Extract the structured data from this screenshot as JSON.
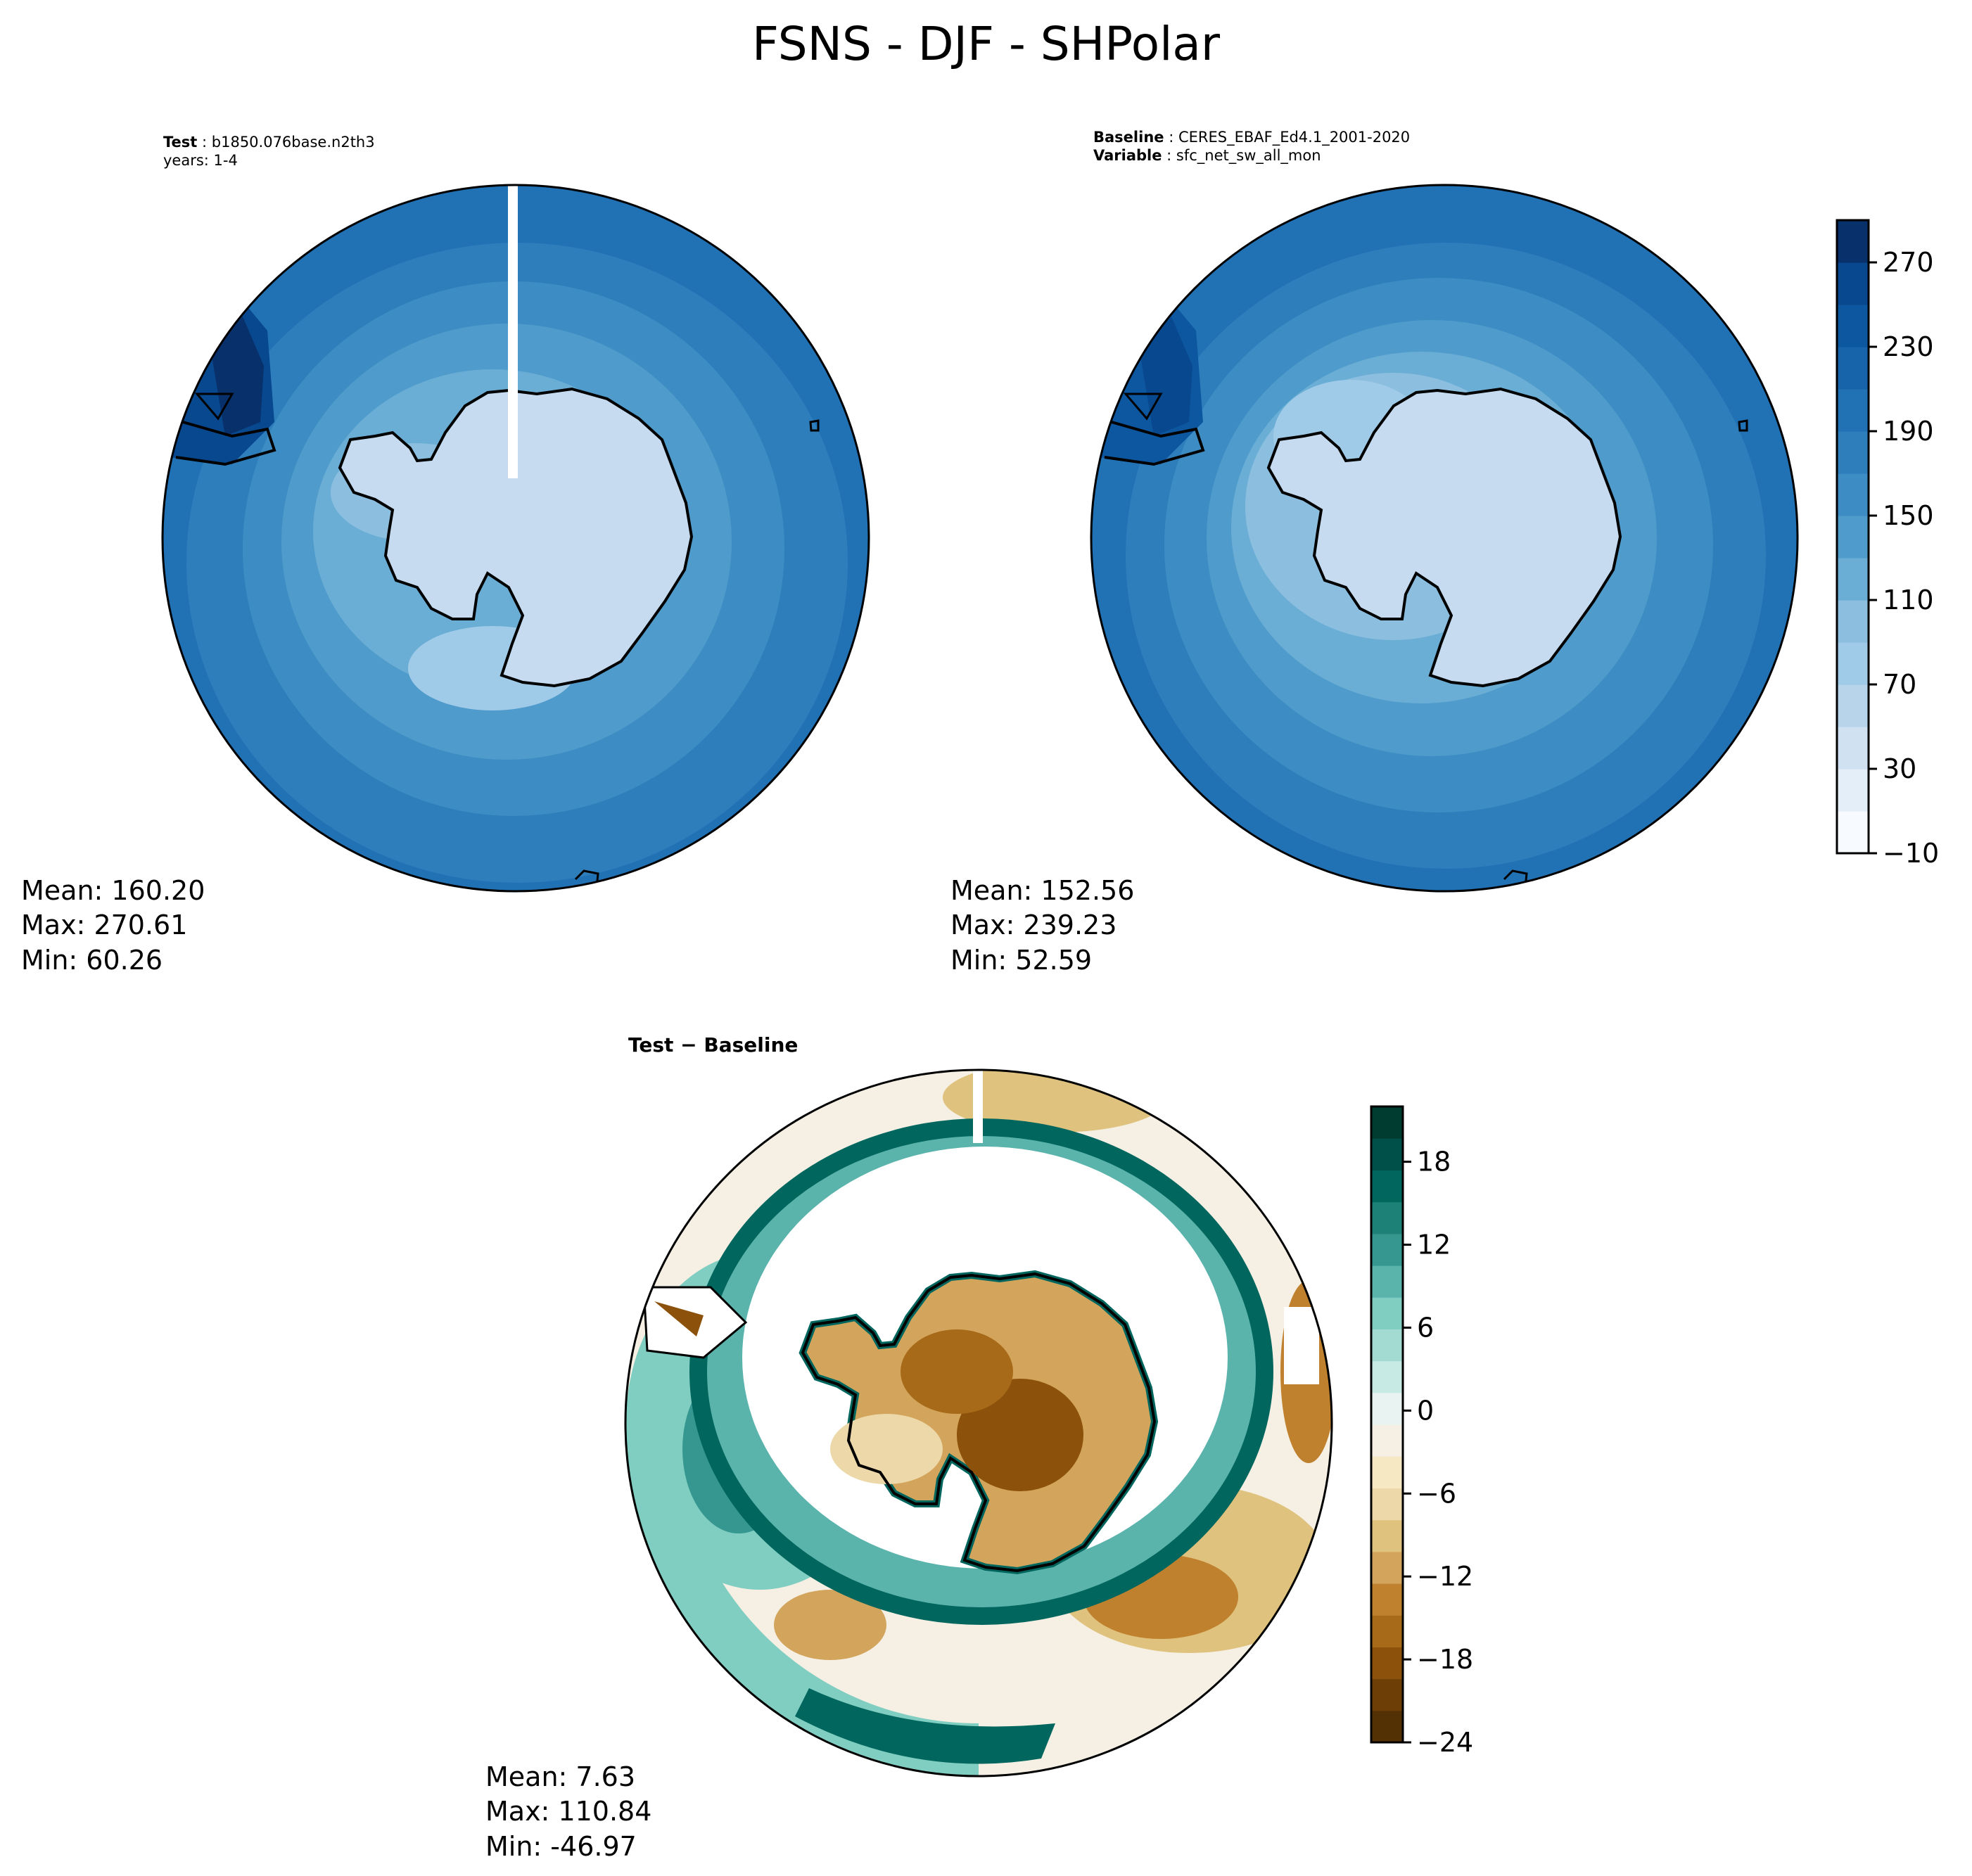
{
  "figure": {
    "title": "FSNS - DJF - SHPolar"
  },
  "panels": {
    "test": {
      "label_key": "Test",
      "label_value": "b1850.076base.n2th3",
      "years": "years: 1-4",
      "mean": "Mean: 160.20",
      "max": "Max: 270.61",
      "min": "Min: 60.26"
    },
    "baseline": {
      "label_key": "Baseline",
      "label_value": "CERES_EBAF_Ed4.1_2001-2020",
      "variable_key": "Variable",
      "variable_value": "sfc_net_sw_all_mon",
      "mean": "Mean: 152.56",
      "max": "Max: 239.23",
      "min": "Min: 52.59"
    },
    "diff": {
      "title": "Test − Baseline",
      "mean": "Mean:  7.63",
      "max": "Max: 110.84",
      "min": "Min: -46.97"
    }
  },
  "chart_data": [
    {
      "type": "heatmap",
      "name": "test",
      "projection": "south-polar-stereographic",
      "colormap": "Blues",
      "summary": {
        "mean": 160.2,
        "max": 270.61,
        "min": 60.26
      },
      "zones": [
        {
          "region": "antarctic-continent",
          "value": 90
        },
        {
          "region": "coastal-ring",
          "value": 130
        },
        {
          "region": "southern-ocean-inner",
          "value": 160
        },
        {
          "region": "southern-ocean-mid",
          "value": 190
        },
        {
          "region": "southern-ocean-outer",
          "value": 215
        },
        {
          "region": "rim",
          "value": 235
        },
        {
          "region": "south-america-tip",
          "value": 265
        }
      ]
    },
    {
      "type": "heatmap",
      "name": "baseline",
      "projection": "south-polar-stereographic",
      "colormap": "Blues",
      "summary": {
        "mean": 152.56,
        "max": 239.23,
        "min": 52.59
      },
      "zones": [
        {
          "region": "antarctic-continent",
          "value": 80
        },
        {
          "region": "coastal-ring",
          "value": 115
        },
        {
          "region": "southern-ocean-inner",
          "value": 150
        },
        {
          "region": "southern-ocean-mid",
          "value": 180
        },
        {
          "region": "southern-ocean-outer",
          "value": 205
        },
        {
          "region": "rim",
          "value": 225
        },
        {
          "region": "south-america-tip",
          "value": 250
        }
      ],
      "colorbar": {
        "ticks": [
          "270",
          "230",
          "190",
          "150",
          "110",
          "70",
          "30",
          "−10"
        ],
        "range": [
          -10,
          290
        ],
        "levels": [
          -10,
          10,
          30,
          50,
          70,
          90,
          110,
          130,
          150,
          170,
          190,
          210,
          230,
          250,
          270,
          290
        ]
      }
    },
    {
      "type": "heatmap",
      "name": "diff",
      "projection": "south-polar-stereographic",
      "colormap": "BrBG",
      "summary": {
        "mean": 7.63,
        "max": 110.84,
        "min": -46.97
      },
      "zones": [
        {
          "region": "antarctic-continent",
          "value": -9
        },
        {
          "region": "sea-ice-edge",
          "value": 16
        },
        {
          "region": "southern-ocean-west",
          "value": 9
        },
        {
          "region": "southern-ocean-east",
          "value": -5
        },
        {
          "region": "rim",
          "value": 8
        }
      ],
      "colorbar": {
        "ticks": [
          "18",
          "12",
          "6",
          "0",
          "−6",
          "−12",
          "−18",
          "−24"
        ],
        "range": [
          -24,
          22
        ]
      }
    }
  ],
  "colors": {
    "blues": [
      "#f7fbff",
      "#e3eef9",
      "#d0e1f2",
      "#b7d4ea",
      "#a0cbe8",
      "#8bbedf",
      "#6aaed6",
      "#4f9bcb",
      "#3d8dc4",
      "#2e7ebc",
      "#2171b5",
      "#1764ab",
      "#0d57a1",
      "#08488e",
      "#08306b"
    ],
    "brbg": [
      "#543005",
      "#6d3f07",
      "#8c510a",
      "#a66a18",
      "#bf812d",
      "#d3a45c",
      "#dfc27d",
      "#ecd8a8",
      "#f6e8c3",
      "#f5f0e3",
      "#e9f3f2",
      "#c7eae5",
      "#a3dbd3",
      "#80cdc1",
      "#5ab4ac",
      "#35978f",
      "#1e8177",
      "#01665e",
      "#00504a",
      "#003c30"
    ]
  }
}
